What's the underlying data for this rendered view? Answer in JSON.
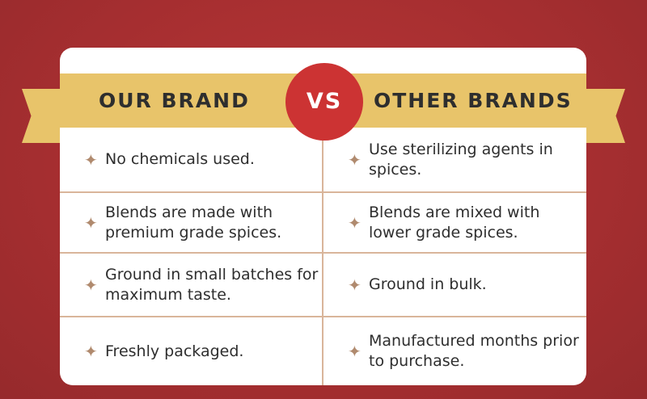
{
  "header": {
    "left": "OUR BRAND",
    "vs": "VS",
    "right": "OTHER BRANDS"
  },
  "rows": [
    {
      "ours": "No chemicals used.",
      "others": "Use sterilizing agents in spices."
    },
    {
      "ours": "Blends are made with premium grade spices.",
      "others": "Blends are mixed with lower grade spices."
    },
    {
      "ours": "Ground in small batches for maximum taste.",
      "others": "Ground in bulk."
    },
    {
      "ours": "Freshly packaged.",
      "others": "Manufactured months prior to purchase."
    }
  ],
  "icon": "four-point-star-icon",
  "colors": {
    "background": "#a52e30",
    "banner": "#e8c46a",
    "vs_circle": "#cc3333",
    "star": "#b08a6e"
  }
}
